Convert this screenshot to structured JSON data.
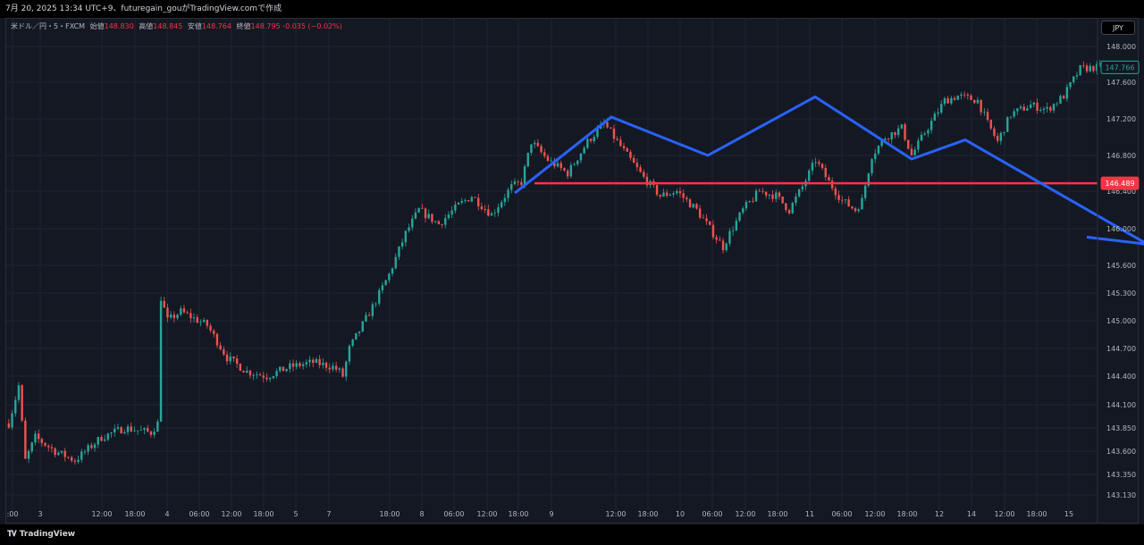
{
  "header": {
    "caption": "7月 20, 2025 13:34 UTC+9、futuregain_gouがTradingView.comで作成"
  },
  "legend": {
    "symbol": "米ドル／円・5・FXCM",
    "open_label": "始値",
    "open": "148.830",
    "high_label": "高値",
    "high": "148.845",
    "low_label": "安値",
    "low": "148.764",
    "close_label": "終値",
    "close": "148.795",
    "change": "-0.035 (−0.02%)"
  },
  "currency_button": "JPY",
  "brand": "TradingView",
  "colors": {
    "up": "#26a69a",
    "down": "#ef5350",
    "pattern": "#2962ff",
    "level": "#f23645",
    "grid": "#1f2330"
  },
  "chart_data": {
    "type": "candlestick",
    "interval": "5",
    "x_ticks": [
      ":00",
      "3",
      "12:00",
      "18:00",
      "4",
      "06:00",
      "12:00",
      "18:00",
      "5",
      "7",
      "18:00",
      "8",
      "06:00",
      "12:00",
      "18:00",
      "9",
      "12:00",
      "18:00",
      "10",
      "06:00",
      "12:00",
      "18:00",
      "11",
      "06:00",
      "12:00",
      "18:00",
      "12",
      "14",
      "12:00",
      "18:00",
      "15"
    ],
    "y_ticks": [
      "148.000",
      "147.600",
      "147.200",
      "146.800",
      "146.400",
      "146.000",
      "145.600",
      "145.300",
      "145.000",
      "144.700",
      "144.400",
      "144.100",
      "143.850",
      "143.600",
      "143.350",
      "143.130"
    ],
    "ylim": [
      143.03,
      148.1
    ],
    "price_path": [
      [
        0,
        143.9
      ],
      [
        3,
        144.3
      ],
      [
        5,
        143.5
      ],
      [
        8,
        143.75
      ],
      [
        14,
        143.6
      ],
      [
        20,
        143.5
      ],
      [
        28,
        143.75
      ],
      [
        35,
        143.85
      ],
      [
        43,
        143.8
      ],
      [
        45,
        143.9
      ],
      [
        46,
        145.25
      ],
      [
        48,
        145.0
      ],
      [
        52,
        145.1
      ],
      [
        60,
        144.95
      ],
      [
        66,
        144.6
      ],
      [
        72,
        144.45
      ],
      [
        78,
        144.4
      ],
      [
        85,
        144.5
      ],
      [
        92,
        144.55
      ],
      [
        98,
        144.5
      ],
      [
        100,
        144.45
      ],
      [
        101,
        144.4
      ],
      [
        103,
        144.7
      ],
      [
        110,
        145.15
      ],
      [
        115,
        145.5
      ],
      [
        120,
        145.95
      ],
      [
        124,
        146.2
      ],
      [
        130,
        146.05
      ],
      [
        136,
        146.25
      ],
      [
        140,
        146.35
      ],
      [
        146,
        146.15
      ],
      [
        152,
        146.45
      ],
      [
        155,
        146.5
      ],
      [
        158,
        146.95
      ],
      [
        163,
        146.75
      ],
      [
        169,
        146.6
      ],
      [
        175,
        146.95
      ],
      [
        180,
        147.15
      ],
      [
        186,
        146.85
      ],
      [
        192,
        146.55
      ],
      [
        197,
        146.35
      ],
      [
        202,
        146.4
      ],
      [
        208,
        146.2
      ],
      [
        214,
        145.9
      ],
      [
        216,
        145.8
      ],
      [
        218,
        145.95
      ],
      [
        222,
        146.2
      ],
      [
        227,
        146.4
      ],
      [
        232,
        146.35
      ],
      [
        236,
        146.2
      ],
      [
        240,
        146.45
      ],
      [
        244,
        146.75
      ],
      [
        248,
        146.5
      ],
      [
        252,
        146.3
      ],
      [
        256,
        146.2
      ],
      [
        258,
        146.3
      ],
      [
        261,
        146.8
      ],
      [
        265,
        147.0
      ],
      [
        270,
        147.1
      ],
      [
        273,
        146.8
      ],
      [
        277,
        147.05
      ],
      [
        283,
        147.4
      ],
      [
        287,
        147.45
      ],
      [
        293,
        147.4
      ],
      [
        296,
        147.15
      ],
      [
        299,
        146.95
      ],
      [
        303,
        147.25
      ],
      [
        309,
        147.35
      ],
      [
        314,
        147.3
      ],
      [
        319,
        147.45
      ],
      [
        324,
        147.75
      ],
      [
        330,
        147.77
      ]
    ],
    "overlays": {
      "pattern_polyline": [
        [
          0,
          146.38
        ],
        [
          9,
          147.22
        ],
        [
          18,
          146.8
        ],
        [
          28,
          147.44
        ],
        [
          37,
          146.76
        ],
        [
          42,
          146.97
        ],
        [
          59,
          145.83
        ],
        [
          55,
          145.85
        ]
      ],
      "horizontal_level": 146.489,
      "level_label": "146.489",
      "last_price_label": "147.766"
    }
  }
}
